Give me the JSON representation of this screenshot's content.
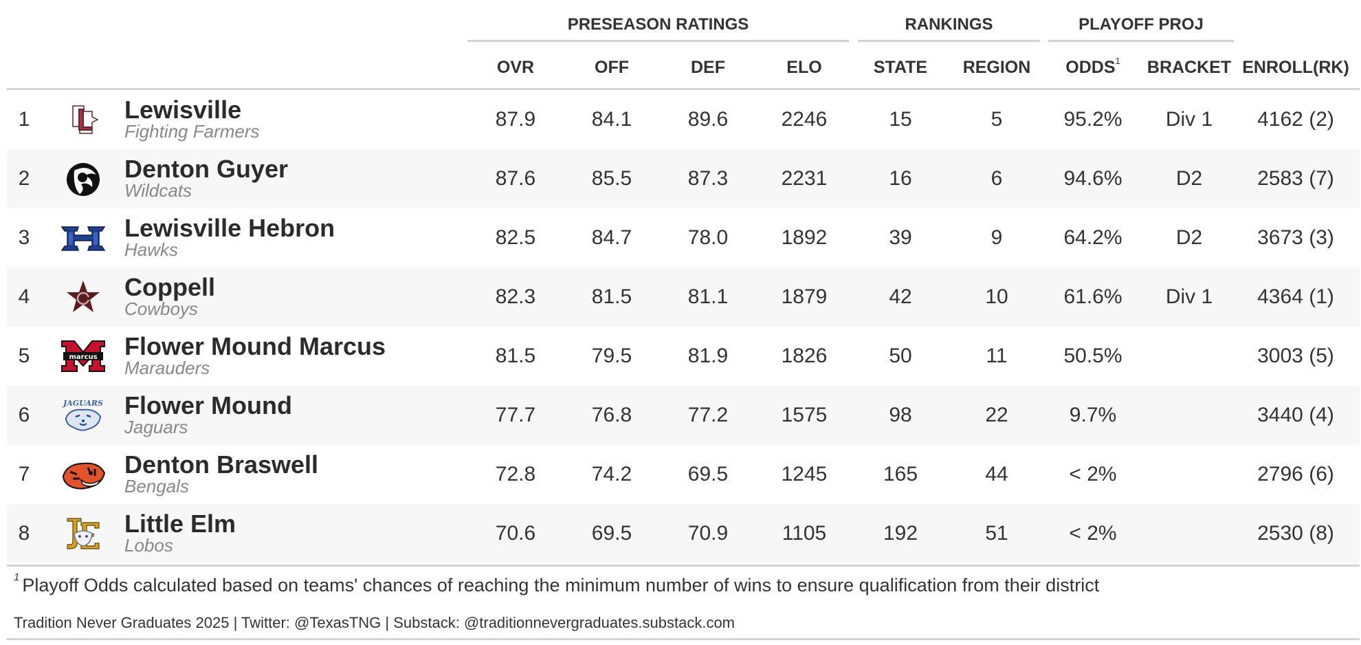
{
  "spanners": {
    "preseason": "PRESEASON RATINGS",
    "rankings": "RANKINGS",
    "playoff": "PLAYOFF PROJ"
  },
  "columns": {
    "ovr": "OVR",
    "off": "OFF",
    "def": "DEF",
    "elo": "ELO",
    "state": "STATE",
    "region": "REGION",
    "odds": "ODDS",
    "odds_footnote_mark": "1",
    "bracket": "BRACKET",
    "enroll": "ENROLL(RK)"
  },
  "teams": [
    {
      "rank": "1",
      "name": "Lewisville",
      "mascot": "Fighting Farmers",
      "logo": "lewisville-logo",
      "ovr": "87.9",
      "off": "84.1",
      "def": "89.6",
      "elo": "2246",
      "state": "15",
      "region": "5",
      "odds": "95.2%",
      "bracket": "Div 1",
      "enroll": "4162 (2)"
    },
    {
      "rank": "2",
      "name": "Denton Guyer",
      "mascot": "Wildcats",
      "logo": "guyer-logo",
      "ovr": "87.6",
      "off": "85.5",
      "def": "87.3",
      "elo": "2231",
      "state": "16",
      "region": "6",
      "odds": "94.6%",
      "bracket": "D2",
      "enroll": "2583 (7)"
    },
    {
      "rank": "3",
      "name": "Lewisville Hebron",
      "mascot": "Hawks",
      "logo": "hebron-logo",
      "ovr": "82.5",
      "off": "84.7",
      "def": "78.0",
      "elo": "1892",
      "state": "39",
      "region": "9",
      "odds": "64.2%",
      "bracket": "D2",
      "enroll": "3673 (3)"
    },
    {
      "rank": "4",
      "name": "Coppell",
      "mascot": "Cowboys",
      "logo": "coppell-logo",
      "ovr": "82.3",
      "off": "81.5",
      "def": "81.1",
      "elo": "1879",
      "state": "42",
      "region": "10",
      "odds": "61.6%",
      "bracket": "Div 1",
      "enroll": "4364 (1)"
    },
    {
      "rank": "5",
      "name": "Flower Mound Marcus",
      "mascot": "Marauders",
      "logo": "marcus-logo",
      "ovr": "81.5",
      "off": "79.5",
      "def": "81.9",
      "elo": "1826",
      "state": "50",
      "region": "11",
      "odds": "50.5%",
      "bracket": "",
      "enroll": "3003 (5)"
    },
    {
      "rank": "6",
      "name": "Flower Mound",
      "mascot": "Jaguars",
      "logo": "flower-mound-logo",
      "ovr": "77.7",
      "off": "76.8",
      "def": "77.2",
      "elo": "1575",
      "state": "98",
      "region": "22",
      "odds": "9.7%",
      "bracket": "",
      "enroll": "3440 (4)"
    },
    {
      "rank": "7",
      "name": "Denton Braswell",
      "mascot": "Bengals",
      "logo": "braswell-logo",
      "ovr": "72.8",
      "off": "74.2",
      "def": "69.5",
      "elo": "1245",
      "state": "165",
      "region": "44",
      "odds": "< 2%",
      "bracket": "",
      "enroll": "2796 (6)"
    },
    {
      "rank": "8",
      "name": "Little Elm",
      "mascot": "Lobos",
      "logo": "little-elm-logo",
      "ovr": "70.6",
      "off": "69.5",
      "def": "70.9",
      "elo": "1105",
      "state": "192",
      "region": "51",
      "odds": "< 2%",
      "bracket": "",
      "enroll": "2530 (8)"
    }
  ],
  "footnote": {
    "mark": "1",
    "text": "Playoff Odds calculated based on teams' chances of reaching the minimum number of wins to ensure qualification from their district"
  },
  "source": "Tradition Never Graduates 2025 | Twitter: @TexasTNG | Substack: @traditionnevergraduates.substack.com",
  "colors": {
    "rule": "#d3d3d3",
    "row_alt": "#f7f7f7",
    "lewisville_maroon": "#6b1f2a",
    "hebron_blue": "#1f3f8f",
    "coppell_maroon": "#5a1e22",
    "marcus_red": "#c8102e",
    "jaguar_blue": "#3a5fb0",
    "braswell_orange": "#e2532b",
    "little_elm_gold": "#d6a21e"
  }
}
